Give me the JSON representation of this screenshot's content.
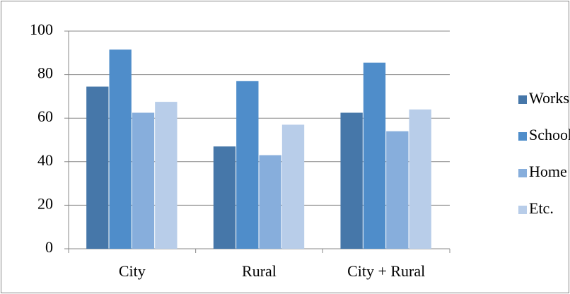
{
  "chart_data": {
    "type": "bar",
    "categories": [
      "City",
      "Rural",
      "City + Rural"
    ],
    "series": [
      {
        "name": "Works",
        "color": "#4677a9",
        "values": [
          74.5,
          47,
          62.5
        ]
      },
      {
        "name": "School",
        "color": "#4f8dca",
        "values": [
          91.5,
          77,
          85.5
        ]
      },
      {
        "name": "Home",
        "color": "#87aedc",
        "values": [
          62.5,
          43,
          54
        ]
      },
      {
        "name": "Etc.",
        "color": "#b8cde9",
        "values": [
          67.5,
          57,
          64
        ]
      }
    ],
    "ylim": [
      0,
      100
    ],
    "yticks": [
      0,
      20,
      40,
      60,
      80,
      100
    ],
    "grid": true,
    "legend": "right"
  }
}
